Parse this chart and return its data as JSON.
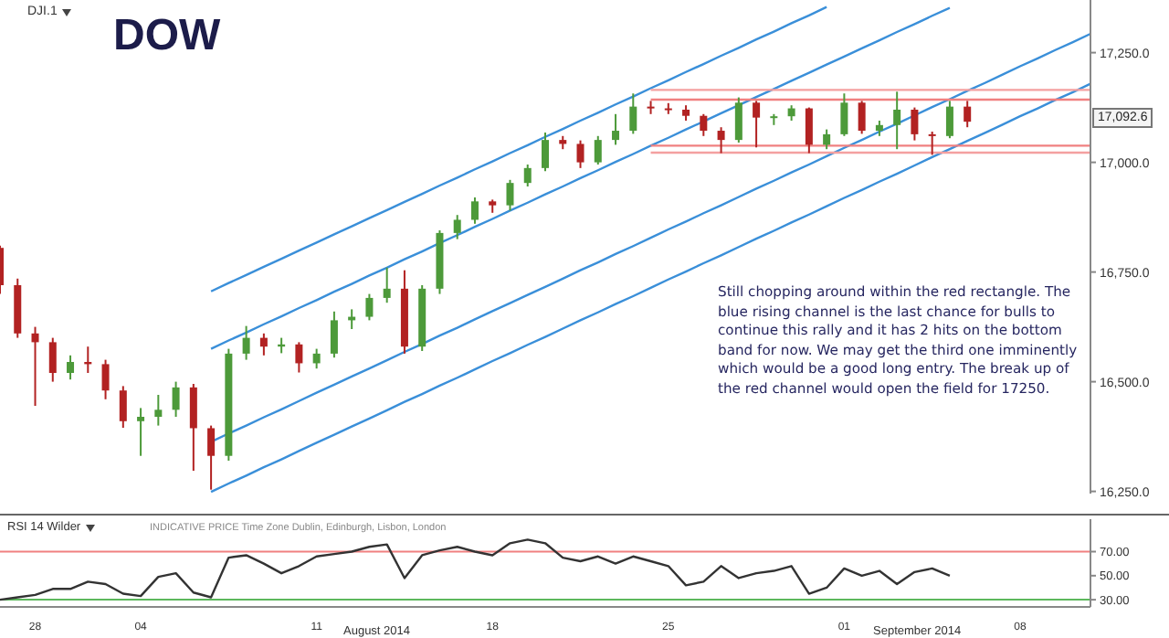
{
  "chart_data": [
    {
      "type": "candlestick",
      "title": "DOW",
      "subtitle": "DJI.1",
      "categories": [
        null,
        null,
        null,
        null,
        null,
        null,
        null,
        null,
        null,
        null,
        null,
        null,
        null,
        null,
        null,
        null,
        null,
        null,
        null,
        null,
        null,
        null,
        null,
        null,
        null,
        null,
        null,
        null,
        null,
        null,
        null,
        null,
        null,
        null,
        null,
        null,
        null,
        null,
        null,
        null,
        null,
        null,
        null,
        null,
        null,
        null,
        null,
        null,
        null,
        null,
        null,
        null,
        null,
        null,
        null,
        null,
        null,
        null,
        null,
        null,
        null,
        null,
        null
      ],
      "ohlc": [
        [
          16805,
          16810,
          16700,
          16720
        ],
        [
          16720,
          16735,
          16600,
          16610
        ],
        [
          16610,
          16625,
          16445,
          16590
        ],
        [
          16590,
          16600,
          16500,
          16520
        ],
        [
          16520,
          16560,
          16505,
          16545
        ],
        [
          16545,
          16580,
          16520,
          16540
        ],
        [
          16540,
          16550,
          16460,
          16480
        ],
        [
          16480,
          16490,
          16395,
          16410
        ],
        [
          16410,
          16440,
          16331,
          16420
        ],
        [
          16420,
          16470,
          16400,
          16436
        ],
        [
          16436,
          16500,
          16420,
          16487
        ],
        [
          16487,
          16495,
          16297,
          16394
        ],
        [
          16394,
          16400,
          16254,
          16331
        ],
        [
          16331,
          16575,
          16320,
          16564
        ],
        [
          16564,
          16627,
          16550,
          16600
        ],
        [
          16600,
          16610,
          16560,
          16580
        ],
        [
          16580,
          16600,
          16565,
          16585
        ],
        [
          16585,
          16590,
          16521,
          16542
        ],
        [
          16542,
          16575,
          16530,
          16564
        ],
        [
          16564,
          16660,
          16555,
          16640
        ],
        [
          16640,
          16665,
          16620,
          16648
        ],
        [
          16648,
          16700,
          16640,
          16691
        ],
        [
          16691,
          16760,
          16680,
          16712
        ],
        [
          16712,
          16754,
          16564,
          16580
        ],
        [
          16580,
          16720,
          16570,
          16712
        ],
        [
          16712,
          16845,
          16700,
          16839
        ],
        [
          16839,
          16880,
          16825,
          16869
        ],
        [
          16869,
          16920,
          16860,
          16911
        ],
        [
          16911,
          16915,
          16885,
          16902
        ],
        [
          16902,
          16960,
          16890,
          16953
        ],
        [
          16953,
          16995,
          16945,
          16987
        ],
        [
          16987,
          17068,
          16980,
          17051
        ],
        [
          17051,
          17060,
          17030,
          17042
        ],
        [
          17042,
          17050,
          16987,
          17000
        ],
        [
          17000,
          17060,
          16995,
          17051
        ],
        [
          17051,
          17110,
          17040,
          17072
        ],
        [
          17072,
          17157,
          17065,
          17127
        ],
        [
          17127,
          17140,
          17110,
          17123
        ],
        [
          17123,
          17135,
          17110,
          17120
        ],
        [
          17120,
          17130,
          17095,
          17106
        ],
        [
          17106,
          17110,
          17060,
          17072
        ],
        [
          17072,
          17080,
          17021,
          17051
        ],
        [
          17051,
          17148,
          17045,
          17136
        ],
        [
          17136,
          17140,
          17034,
          17102
        ],
        [
          17102,
          17110,
          17085,
          17105
        ],
        [
          17105,
          17130,
          17095,
          17123
        ],
        [
          17123,
          17125,
          17021,
          17040
        ],
        [
          17040,
          17075,
          17030,
          17064
        ],
        [
          17064,
          17157,
          17060,
          17136
        ],
        [
          17136,
          17140,
          17065,
          17072
        ],
        [
          17072,
          17095,
          17060,
          17085
        ],
        [
          17085,
          17161,
          17030,
          17120
        ],
        [
          17120,
          17125,
          17050,
          17064
        ],
        [
          17064,
          17070,
          17017,
          17060
        ],
        [
          17060,
          17140,
          17055,
          17127
        ],
        [
          17127,
          17140,
          17080,
          17092.6
        ],
        null,
        null,
        null,
        null,
        null,
        null,
        null
      ],
      "colors": [
        "#b22222",
        "#b22222",
        "#b22222",
        "#b22222",
        "#4d9a3a",
        "#b22222",
        "#b22222",
        "#b22222",
        "#4d9a3a",
        "#4d9a3a",
        "#4d9a3a",
        "#b22222",
        "#b22222",
        "#4d9a3a",
        "#4d9a3a",
        "#b22222",
        "#4d9a3a",
        "#b22222",
        "#4d9a3a",
        "#4d9a3a",
        "#4d9a3a",
        "#4d9a3a",
        "#4d9a3a",
        "#b22222",
        "#4d9a3a",
        "#4d9a3a",
        "#4d9a3a",
        "#4d9a3a",
        "#b22222",
        "#4d9a3a",
        "#4d9a3a",
        "#4d9a3a",
        "#b22222",
        "#b22222",
        "#4d9a3a",
        "#4d9a3a",
        "#4d9a3a",
        "#b22222",
        "#b22222",
        "#b22222",
        "#b22222",
        "#b22222",
        "#4d9a3a",
        "#b22222",
        "#4d9a3a",
        "#4d9a3a",
        "#b22222",
        "#4d9a3a",
        "#4d9a3a",
        "#b22222",
        "#4d9a3a",
        "#4d9a3a",
        "#b22222",
        "#b22222",
        "#4d9a3a",
        "#b22222",
        null,
        null,
        null,
        null,
        null,
        null,
        null
      ],
      "series": [
        {
          "type": "line",
          "color": "#3a8fd9",
          "values": [
            null,
            null,
            null,
            null,
            null,
            null,
            null,
            null,
            null,
            null,
            null,
            null,
            16706,
            16725,
            16743,
            16762,
            16780,
            16799,
            16817,
            16836,
            16854,
            16873,
            16891,
            16910,
            16928,
            16947,
            16965,
            16984,
            17002,
            17021,
            17039,
            17058,
            17076,
            17095,
            17113,
            17132,
            17150,
            17169,
            17187,
            17206,
            17224,
            17243,
            17261,
            17280,
            17298,
            17317,
            17335,
            17354,
            null,
            null,
            null,
            null,
            null,
            null,
            null,
            null,
            null,
            null,
            null,
            null,
            null,
            null,
            null
          ]
        },
        {
          "type": "line",
          "color": "#3a8fd9",
          "values": [
            null,
            null,
            null,
            null,
            null,
            null,
            null,
            null,
            null,
            null,
            null,
            null,
            16575,
            16594,
            16612,
            16631,
            16649,
            16668,
            16686,
            16705,
            16723,
            16742,
            16760,
            16779,
            16797,
            16816,
            16834,
            16853,
            16871,
            16890,
            16908,
            16927,
            16945,
            16964,
            16982,
            17001,
            17019,
            17038,
            17056,
            17075,
            17093,
            17112,
            17130,
            17149,
            17167,
            17186,
            17204,
            17223,
            17241,
            17260,
            17278,
            17297,
            17315,
            17334,
            17352,
            null,
            null,
            null,
            null,
            null,
            null,
            null,
            null
          ]
        },
        {
          "type": "line",
          "color": "#3a8fd9",
          "values": [
            null,
            null,
            null,
            null,
            null,
            null,
            null,
            null,
            null,
            null,
            null,
            null,
            16363,
            16382,
            16400,
            16419,
            16437,
            16456,
            16475,
            16493,
            16512,
            16530,
            16549,
            16568,
            16586,
            16605,
            16623,
            16642,
            16661,
            16679,
            16698,
            16716,
            16735,
            16754,
            16772,
            16791,
            16809,
            16828,
            16847,
            16865,
            16884,
            16902,
            16921,
            16940,
            16958,
            16977,
            16995,
            17014,
            17033,
            17051,
            17070,
            17088,
            17107,
            17126,
            17144,
            17163,
            17181,
            17200,
            17219,
            17237,
            17256,
            17274,
            17293
          ]
        },
        {
          "type": "line",
          "color": "#3a8fd9",
          "values": [
            null,
            null,
            null,
            null,
            null,
            null,
            null,
            null,
            null,
            null,
            null,
            null,
            16249,
            16268,
            16286,
            16305,
            16323,
            16342,
            16361,
            16379,
            16398,
            16416,
            16435,
            16454,
            16472,
            16491,
            16509,
            16528,
            16547,
            16565,
            16584,
            16602,
            16621,
            16640,
            16658,
            16677,
            16695,
            16714,
            16733,
            16751,
            16770,
            16788,
            16807,
            16826,
            16844,
            16863,
            16881,
            16900,
            16919,
            16937,
            16956,
            16974,
            16993,
            17012,
            17030,
            17049,
            17067,
            17086,
            17105,
            17123,
            17142,
            17160,
            17179
          ]
        },
        {
          "type": "line",
          "color": "#f4a0a0",
          "values": [
            null,
            null,
            null,
            null,
            null,
            null,
            null,
            null,
            null,
            null,
            null,
            null,
            null,
            null,
            null,
            null,
            null,
            null,
            null,
            null,
            null,
            null,
            null,
            null,
            null,
            null,
            null,
            null,
            null,
            null,
            null,
            null,
            null,
            null,
            null,
            null,
            null,
            17165,
            17165,
            17165,
            17165,
            17165,
            17165,
            17165,
            17165,
            17165,
            17165,
            17165,
            17165,
            17165,
            17165,
            17165,
            17165,
            17165,
            17165,
            17165,
            17165,
            17165,
            17165,
            17165,
            17165,
            17165,
            17165
          ]
        },
        {
          "type": "line",
          "color": "#f08080",
          "values": [
            null,
            null,
            null,
            null,
            null,
            null,
            null,
            null,
            null,
            null,
            null,
            null,
            null,
            null,
            null,
            null,
            null,
            null,
            null,
            null,
            null,
            null,
            null,
            null,
            null,
            null,
            null,
            null,
            null,
            null,
            null,
            null,
            null,
            null,
            null,
            null,
            null,
            17143,
            17143,
            17143,
            17143,
            17143,
            17143,
            17143,
            17143,
            17143,
            17143,
            17143,
            17143,
            17143,
            17143,
            17143,
            17143,
            17143,
            17143,
            17143,
            17143,
            17143,
            17143,
            17143,
            17143,
            17143,
            17143
          ]
        },
        {
          "type": "line",
          "color": "#f08080",
          "values": [
            null,
            null,
            null,
            null,
            null,
            null,
            null,
            null,
            null,
            null,
            null,
            null,
            null,
            null,
            null,
            null,
            null,
            null,
            null,
            null,
            null,
            null,
            null,
            null,
            null,
            null,
            null,
            null,
            null,
            null,
            null,
            null,
            null,
            null,
            null,
            null,
            null,
            17038,
            17038,
            17038,
            17038,
            17038,
            17038,
            17038,
            17038,
            17038,
            17038,
            17038,
            17038,
            17038,
            17038,
            17038,
            17038,
            17038,
            17038,
            17038,
            17038,
            17038,
            17038,
            17038,
            17038,
            17038,
            17038
          ]
        },
        {
          "type": "line",
          "color": "#f4a0a0",
          "values": [
            null,
            null,
            null,
            null,
            null,
            null,
            null,
            null,
            null,
            null,
            null,
            null,
            null,
            null,
            null,
            null,
            null,
            null,
            null,
            null,
            null,
            null,
            null,
            null,
            null,
            null,
            null,
            null,
            null,
            null,
            null,
            null,
            null,
            null,
            null,
            null,
            null,
            17022,
            17022,
            17022,
            17022,
            17022,
            17022,
            17022,
            17022,
            17022,
            17022,
            17022,
            17022,
            17022,
            17022,
            17022,
            17022,
            17022,
            17022,
            17022,
            17022,
            17022,
            17022,
            17022,
            17022,
            17022,
            17022
          ]
        }
      ],
      "ylim": [
        16245,
        17370
      ],
      "yticks": [
        {
          "value": 16250,
          "label": "16,250.0"
        },
        {
          "value": 16500,
          "label": "16,500.0"
        },
        {
          "value": 16750,
          "label": "16,750.0"
        },
        {
          "value": 17000,
          "label": "17,000.0"
        },
        {
          "value": 17250,
          "label": "17,250.0"
        }
      ],
      "tick_labels": "y",
      "annotations": [
        "Still chopping around within the red rectangle. The blue rising channel is the last chance for bulls to continue this rally and it has 2 hits on the bottom band for now. We may get the third one imminently which would be a good long entry. The break up of the red channel would open the field for 17250.",
        "17,092.6"
      ]
    },
    {
      "type": "line",
      "title": "RSI 14 Wilder",
      "categories": [
        null,
        null,
        "28",
        null,
        null,
        null,
        null,
        null,
        "04",
        null,
        null,
        null,
        null,
        null,
        null,
        null,
        null,
        null,
        "11",
        null,
        null,
        null,
        null,
        null,
        null,
        null,
        null,
        null,
        "18",
        null,
        null,
        null,
        null,
        null,
        null,
        null,
        null,
        null,
        "25",
        null,
        null,
        null,
        null,
        null,
        null,
        null,
        null,
        null,
        "01",
        null,
        null,
        null,
        null,
        null,
        null,
        null,
        null,
        null,
        "08",
        null,
        null,
        null,
        null
      ],
      "series": [
        {
          "color": "#333333",
          "values": [
            30,
            32,
            34,
            39,
            39,
            45,
            43,
            35,
            33,
            49,
            52,
            36,
            32,
            65,
            67,
            60,
            52,
            58,
            66,
            68,
            70,
            74,
            76,
            48,
            67,
            71,
            74,
            70,
            67,
            77,
            80,
            77,
            65,
            62,
            66,
            60,
            66,
            62,
            58,
            42,
            45,
            58,
            48,
            52,
            54,
            58,
            35,
            40,
            56,
            50,
            54,
            43,
            53,
            56,
            50,
            null,
            null,
            null,
            null,
            null,
            null,
            null,
            null
          ]
        }
      ],
      "ylim": [
        24,
        97
      ],
      "yticks": [
        {
          "value": 30,
          "label": "30.00"
        },
        {
          "value": 50,
          "label": "50.00"
        },
        {
          "value": 70,
          "label": "70.00"
        }
      ],
      "ref_lines": [
        {
          "axis": "y",
          "value": 70,
          "color": "#f08080"
        },
        {
          "axis": "y",
          "value": 30,
          "color": "#5cb85c"
        }
      ],
      "annotations": [
        "INDICATIVE PRICE  Time Zone Dublin, Edinburgh, Lisbon, London",
        "August 2014",
        "September 2014"
      ]
    }
  ]
}
